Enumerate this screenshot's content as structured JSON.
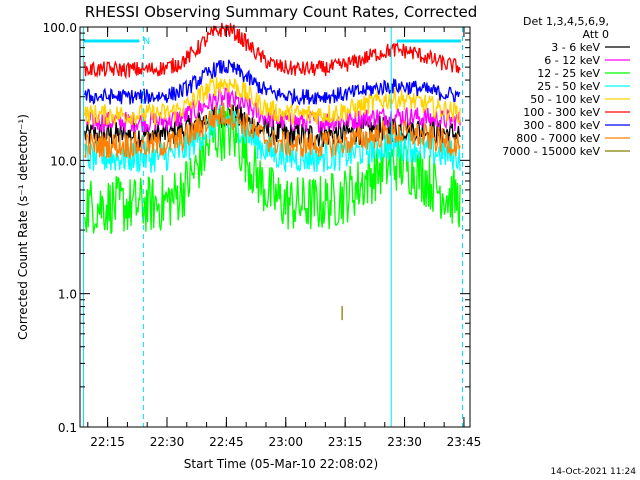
{
  "chart_data": {
    "type": "line",
    "title": "RHESSI Observing Summary Count Rates, Corrected",
    "xlabel": "Start Time (05-Mar-10 22:08:02)",
    "ylabel": "Corrected Count Rate (s⁻¹ detector⁻¹)",
    "yscale": "log",
    "ylim": [
      0.1,
      100.0
    ],
    "xlim_minutes": [
      0,
      98.5
    ],
    "y_ticks": [
      {
        "value": 0.1,
        "label": "0.1"
      },
      {
        "value": 1.0,
        "label": "1.0"
      },
      {
        "value": 10.0,
        "label": "10.0"
      },
      {
        "value": 100.0,
        "label": "100.0"
      }
    ],
    "x_ticks": [
      {
        "minutes": 6.97,
        "label": "22:15"
      },
      {
        "minutes": 21.97,
        "label": "22:30"
      },
      {
        "minutes": 36.97,
        "label": "22:45"
      },
      {
        "minutes": 51.97,
        "label": "23:00"
      },
      {
        "minutes": 66.97,
        "label": "23:15"
      },
      {
        "minutes": 81.97,
        "label": "23:30"
      },
      {
        "minutes": 96.97,
        "label": "23:45"
      }
    ],
    "legend_header": [
      "Det 1,3,4,5,6,9,",
      "Att 0"
    ],
    "series": [
      {
        "name": "3 - 6 keV",
        "color": "#000000",
        "base": 15.5,
        "peak": 22.0,
        "peak2": 17.5,
        "noise": 0.1
      },
      {
        "name": "6 - 12 keV",
        "color": "#ff00ff",
        "base": 19.5,
        "peak": 29.0,
        "peak2": 21.5,
        "noise": 0.08
      },
      {
        "name": "12 - 25 keV",
        "color": "#00ff00",
        "base": 4.6,
        "peak": 16.5,
        "peak2": 9.5,
        "noise": 0.22
      },
      {
        "name": "25 - 50 keV",
        "color": "#00ffff",
        "base": 10.5,
        "peak": 20.0,
        "peak2": 13.0,
        "noise": 0.12
      },
      {
        "name": "50 - 100 keV",
        "color": "#ffd200",
        "base": 22.0,
        "peak": 38.0,
        "peak2": 29.0,
        "noise": 0.08
      },
      {
        "name": "100 - 300 keV",
        "color": "#ff0000",
        "base": 48.0,
        "peak": 96.0,
        "peak2": 67.0,
        "noise": 0.06
      },
      {
        "name": "300 - 800 keV",
        "color": "#0000ff",
        "base": 30.0,
        "peak": 50.0,
        "peak2": 36.0,
        "noise": 0.06
      },
      {
        "name": "800 - 7000 keV",
        "color": "#ff8000",
        "base": 13.0,
        "peak": 22.0,
        "peak2": 16.0,
        "noise": 0.1
      },
      {
        "name": "7000 - 15000 keV",
        "color": "#808000",
        "base": 0.72,
        "peak": 0.72,
        "peak2": 0.72,
        "noise": 0.05,
        "segment_minutes": [
          66.2,
          66.4
        ]
      }
    ],
    "markers": {
      "eclipse_label": "N",
      "eclipse_bars_minutes": [
        [
          1.0,
          15.0
        ],
        [
          80.0,
          96.2
        ]
      ],
      "solid_lines_minutes": [
        0.9,
        78.6
      ],
      "dashed_lines_minutes": [
        16.0,
        96.6
      ]
    },
    "footer_date": "14-Oct-2021 11:24"
  }
}
